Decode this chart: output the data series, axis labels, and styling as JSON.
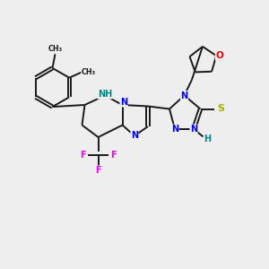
{
  "bg_color": "#eeeeee",
  "bond_color": "#1a1a1a",
  "N_color": "#0000ee",
  "O_color": "#ee0000",
  "F_color": "#ee00ee",
  "S_color": "#aaaa00",
  "H_color": "#008888",
  "figsize": [
    3.0,
    3.0
  ],
  "dpi": 100,
  "lw": 1.4,
  "dbl_off": 0.06,
  "xlim": [
    0,
    10
  ],
  "ylim": [
    0,
    10
  ]
}
